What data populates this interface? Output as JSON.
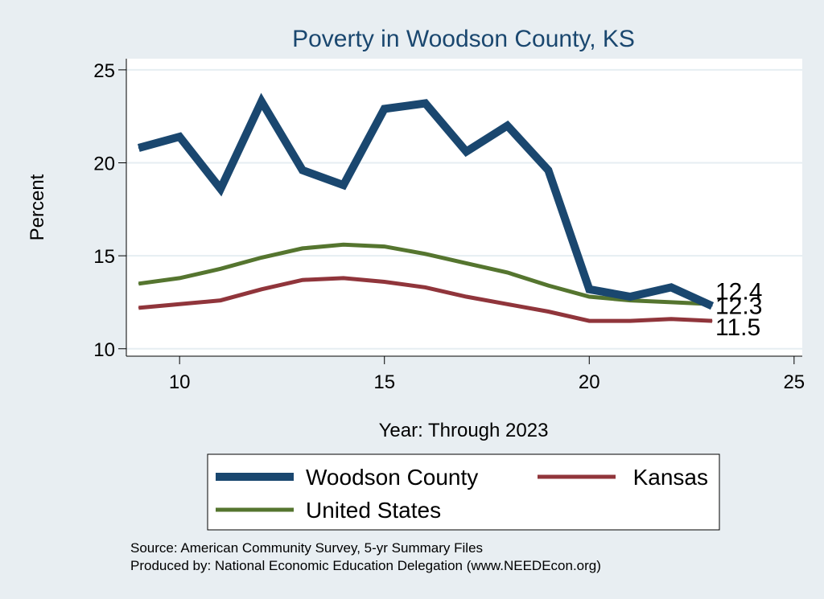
{
  "chart_data": {
    "type": "line",
    "title": "Poverty in Woodson County, KS",
    "xlabel": "Year: Through 2023",
    "ylabel": "Percent",
    "xlim": [
      8.7,
      25.2
    ],
    "ylim": [
      9.6,
      25.6
    ],
    "xticks": [
      10,
      15,
      20,
      25
    ],
    "yticks": [
      10,
      15,
      20,
      25
    ],
    "grid": true,
    "legend_position": "bottom",
    "series": [
      {
        "name": "Woodson County",
        "color": "#1a476f",
        "x": [
          9,
          10,
          11,
          12,
          13,
          14,
          15,
          16,
          17,
          18,
          19,
          20,
          21,
          22,
          23
        ],
        "y": [
          20.8,
          21.4,
          18.6,
          23.3,
          19.6,
          18.8,
          22.9,
          23.2,
          20.6,
          22.0,
          19.6,
          13.2,
          12.8,
          13.3,
          12.3
        ],
        "end_label": "12.3"
      },
      {
        "name": "Kansas",
        "color": "#90353b",
        "x": [
          9,
          10,
          11,
          12,
          13,
          14,
          15,
          16,
          17,
          18,
          19,
          20,
          21,
          22,
          23
        ],
        "y": [
          12.2,
          12.4,
          12.6,
          13.2,
          13.7,
          13.8,
          13.6,
          13.3,
          12.8,
          12.4,
          12.0,
          11.5,
          11.5,
          11.6,
          11.5
        ],
        "end_label": "11.5"
      },
      {
        "name": "United States",
        "color": "#55752f",
        "x": [
          9,
          10,
          11,
          12,
          13,
          14,
          15,
          16,
          17,
          18,
          19,
          20,
          21,
          22,
          23
        ],
        "y": [
          13.5,
          13.8,
          14.3,
          14.9,
          15.4,
          15.6,
          15.5,
          15.1,
          14.6,
          14.1,
          13.4,
          12.8,
          12.6,
          12.5,
          12.4
        ],
        "end_label": "12.4"
      }
    ]
  },
  "notes": {
    "source": "Source: American Community Survey, 5-yr Summary Files",
    "produced_by": "Produced by: National Economic Education Delegation (www.NEEDEcon.org)"
  },
  "colors": {
    "background": "#e8eef2",
    "plot_area": "#ffffff",
    "grid": "#e6eef2",
    "title": "#1a476f"
  }
}
